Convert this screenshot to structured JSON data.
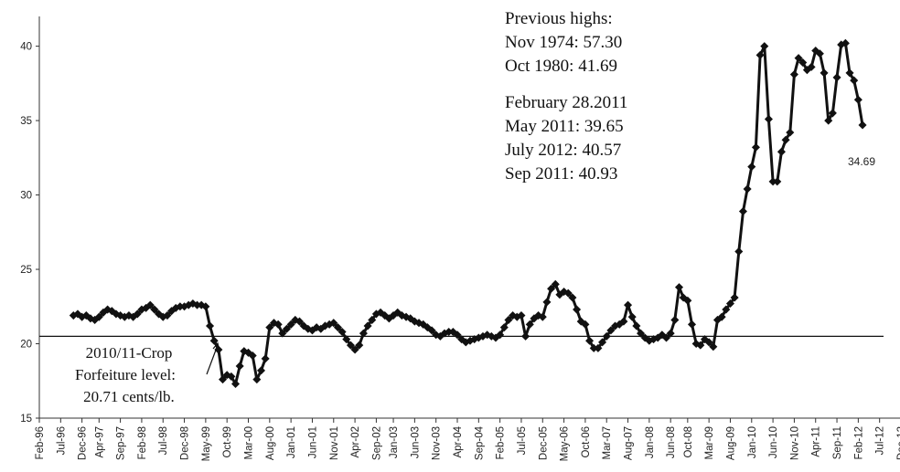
{
  "chart_data": {
    "type": "line",
    "title": "",
    "xlabel": "",
    "ylabel": "",
    "ylim": [
      15,
      42
    ],
    "yticks": [
      15,
      20,
      25,
      30,
      35,
      40
    ],
    "xlim": [
      "1996-02",
      "2012-12"
    ],
    "xtick_labels": [
      "Feb-96",
      "Jul-96",
      "Dec-96",
      "Apr-97",
      "Sep-97",
      "Feb-98",
      "Jul-98",
      "Dec-98",
      "May-99",
      "Oct-99",
      "Mar-00",
      "Aug-00",
      "Jan-01",
      "Jun-01",
      "Nov-01",
      "Apr-02",
      "Sep-02",
      "Jan-03",
      "Jun-03",
      "Nov-03",
      "Apr-04",
      "Sep-04",
      "Feb-05",
      "Jul-05",
      "Dec-05",
      "May-06",
      "Oct-06",
      "Mar-07",
      "Aug-07",
      "Jan-08",
      "Jun-08",
      "Oct-08",
      "Mar-09",
      "Aug-09",
      "Jan-10",
      "Jun-10",
      "Nov-10",
      "Apr-11",
      "Sep-11",
      "Feb-12",
      "Jul-12",
      "Dec-12"
    ],
    "reference_line": {
      "value": 20.5
    },
    "grid": false,
    "legend": "none",
    "series": [
      {
        "points": [
          [
            "1996-10",
            21.9
          ],
          [
            "1996-11",
            22.0
          ],
          [
            "1996-12",
            21.8
          ],
          [
            "1997-01",
            21.9
          ],
          [
            "1997-02",
            21.7
          ],
          [
            "1997-03",
            21.6
          ],
          [
            "1997-04",
            21.8
          ],
          [
            "1997-05",
            22.1
          ],
          [
            "1997-06",
            22.3
          ],
          [
            "1997-07",
            22.2
          ],
          [
            "1997-08",
            22.0
          ],
          [
            "1997-09",
            21.9
          ],
          [
            "1997-10",
            21.8
          ],
          [
            "1997-11",
            21.9
          ],
          [
            "1997-12",
            21.8
          ],
          [
            "1998-01",
            22.0
          ],
          [
            "1998-02",
            22.3
          ],
          [
            "1998-03",
            22.4
          ],
          [
            "1998-04",
            22.6
          ],
          [
            "1998-05",
            22.3
          ],
          [
            "1998-06",
            22.0
          ],
          [
            "1998-07",
            21.8
          ],
          [
            "1998-08",
            21.9
          ],
          [
            "1998-09",
            22.2
          ],
          [
            "1998-10",
            22.4
          ],
          [
            "1998-11",
            22.5
          ],
          [
            "1998-12",
            22.5
          ],
          [
            "1999-01",
            22.6
          ],
          [
            "1999-02",
            22.7
          ],
          [
            "1999-03",
            22.6
          ],
          [
            "1999-04",
            22.6
          ],
          [
            "1999-05",
            22.5
          ],
          [
            "1999-06",
            21.2
          ],
          [
            "1999-07",
            20.2
          ],
          [
            "1999-08",
            19.6
          ],
          [
            "1999-09",
            17.6
          ],
          [
            "1999-10",
            17.9
          ],
          [
            "1999-11",
            17.8
          ],
          [
            "1999-12",
            17.3
          ],
          [
            "2000-01",
            18.5
          ],
          [
            "2000-02",
            19.5
          ],
          [
            "2000-03",
            19.4
          ],
          [
            "2000-04",
            19.2
          ],
          [
            "2000-05",
            17.6
          ],
          [
            "2000-06",
            18.2
          ],
          [
            "2000-07",
            19.0
          ],
          [
            "2000-08",
            21.1
          ],
          [
            "2000-09",
            21.4
          ],
          [
            "2000-10",
            21.3
          ],
          [
            "2000-11",
            20.7
          ],
          [
            "2000-12",
            21.0
          ],
          [
            "2001-01",
            21.3
          ],
          [
            "2001-02",
            21.6
          ],
          [
            "2001-03",
            21.5
          ],
          [
            "2001-04",
            21.2
          ],
          [
            "2001-05",
            21.0
          ],
          [
            "2001-06",
            20.9
          ],
          [
            "2001-07",
            21.1
          ],
          [
            "2001-08",
            21.0
          ],
          [
            "2001-09",
            21.2
          ],
          [
            "2001-10",
            21.3
          ],
          [
            "2001-11",
            21.4
          ],
          [
            "2001-12",
            21.1
          ],
          [
            "2002-01",
            20.8
          ],
          [
            "2002-02",
            20.3
          ],
          [
            "2002-03",
            19.9
          ],
          [
            "2002-04",
            19.6
          ],
          [
            "2002-05",
            19.9
          ],
          [
            "2002-06",
            20.7
          ],
          [
            "2002-07",
            21.2
          ],
          [
            "2002-08",
            21.6
          ],
          [
            "2002-09",
            22.0
          ],
          [
            "2002-10",
            22.1
          ],
          [
            "2002-11",
            21.9
          ],
          [
            "2002-12",
            21.7
          ],
          [
            "2003-01",
            21.9
          ],
          [
            "2003-02",
            22.1
          ],
          [
            "2003-03",
            21.9
          ],
          [
            "2003-04",
            21.8
          ],
          [
            "2003-05",
            21.7
          ],
          [
            "2003-06",
            21.5
          ],
          [
            "2003-07",
            21.4
          ],
          [
            "2003-08",
            21.3
          ],
          [
            "2003-09",
            21.1
          ],
          [
            "2003-10",
            20.9
          ],
          [
            "2003-11",
            20.6
          ],
          [
            "2003-12",
            20.5
          ],
          [
            "2004-01",
            20.7
          ],
          [
            "2004-02",
            20.8
          ],
          [
            "2004-03",
            20.8
          ],
          [
            "2004-04",
            20.6
          ],
          [
            "2004-05",
            20.3
          ],
          [
            "2004-06",
            20.1
          ],
          [
            "2004-07",
            20.2
          ],
          [
            "2004-08",
            20.3
          ],
          [
            "2004-09",
            20.4
          ],
          [
            "2004-10",
            20.5
          ],
          [
            "2004-11",
            20.6
          ],
          [
            "2004-12",
            20.5
          ],
          [
            "2005-01",
            20.4
          ],
          [
            "2005-02",
            20.6
          ],
          [
            "2005-03",
            21.1
          ],
          [
            "2005-04",
            21.6
          ],
          [
            "2005-05",
            21.9
          ],
          [
            "2005-06",
            21.8
          ],
          [
            "2005-07",
            21.9
          ],
          [
            "2005-08",
            20.5
          ],
          [
            "2005-09",
            21.3
          ],
          [
            "2005-10",
            21.7
          ],
          [
            "2005-11",
            21.9
          ],
          [
            "2005-12",
            21.8
          ],
          [
            "2006-01",
            22.8
          ],
          [
            "2006-02",
            23.7
          ],
          [
            "2006-03",
            24.0
          ],
          [
            "2006-04",
            23.3
          ],
          [
            "2006-05",
            23.5
          ],
          [
            "2006-06",
            23.4
          ],
          [
            "2006-07",
            23.1
          ],
          [
            "2006-08",
            22.3
          ],
          [
            "2006-09",
            21.5
          ],
          [
            "2006-10",
            21.3
          ],
          [
            "2006-11",
            20.2
          ],
          [
            "2006-12",
            19.7
          ],
          [
            "2007-01",
            19.7
          ],
          [
            "2007-02",
            20.1
          ],
          [
            "2007-03",
            20.5
          ],
          [
            "2007-04",
            20.9
          ],
          [
            "2007-05",
            21.2
          ],
          [
            "2007-06",
            21.3
          ],
          [
            "2007-07",
            21.5
          ],
          [
            "2007-08",
            22.6
          ],
          [
            "2007-09",
            21.8
          ],
          [
            "2007-10",
            21.2
          ],
          [
            "2007-11",
            20.7
          ],
          [
            "2007-12",
            20.4
          ],
          [
            "2008-01",
            20.2
          ],
          [
            "2008-02",
            20.3
          ],
          [
            "2008-03",
            20.4
          ],
          [
            "2008-04",
            20.6
          ],
          [
            "2008-05",
            20.4
          ],
          [
            "2008-06",
            20.7
          ],
          [
            "2008-07",
            21.6
          ],
          [
            "2008-08",
            23.8
          ],
          [
            "2008-09",
            23.1
          ],
          [
            "2008-10",
            22.9
          ],
          [
            "2008-11",
            21.3
          ],
          [
            "2008-12",
            20.0
          ],
          [
            "2009-01",
            19.9
          ],
          [
            "2009-02",
            20.3
          ],
          [
            "2009-03",
            20.1
          ],
          [
            "2009-04",
            19.8
          ],
          [
            "2009-05",
            21.6
          ],
          [
            "2009-06",
            21.8
          ],
          [
            "2009-07",
            22.3
          ],
          [
            "2009-08",
            22.7
          ],
          [
            "2009-09",
            23.1
          ],
          [
            "2009-10",
            26.2
          ],
          [
            "2009-11",
            28.9
          ],
          [
            "2009-12",
            30.4
          ],
          [
            "2010-01",
            31.9
          ],
          [
            "2010-02",
            33.2
          ],
          [
            "2010-03",
            39.4
          ],
          [
            "2010-04",
            40.0
          ],
          [
            "2010-05",
            35.1
          ],
          [
            "2010-06",
            30.9
          ],
          [
            "2010-07",
            30.9
          ],
          [
            "2010-08",
            32.9
          ],
          [
            "2010-09",
            33.7
          ],
          [
            "2010-10",
            34.2
          ],
          [
            "2010-11",
            38.1
          ],
          [
            "2010-12",
            39.2
          ],
          [
            "2011-01",
            38.9
          ],
          [
            "2011-02",
            38.4
          ],
          [
            "2011-03",
            38.6
          ],
          [
            "2011-04",
            39.7
          ],
          [
            "2011-05",
            39.5
          ],
          [
            "2011-06",
            38.2
          ],
          [
            "2011-07",
            35.0
          ],
          [
            "2011-08",
            35.5
          ],
          [
            "2011-09",
            37.9
          ],
          [
            "2011-10",
            40.1
          ],
          [
            "2011-11",
            40.2
          ],
          [
            "2011-12",
            38.2
          ],
          [
            "2012-01",
            37.7
          ],
          [
            "2012-02",
            36.4
          ],
          [
            "2012-03",
            34.7
          ]
        ]
      }
    ],
    "annotations": {
      "previous_highs": [
        "Previous highs:",
        "Nov 1974: 57.30",
        "Oct 1980: 41.69"
      ],
      "recent": [
        "February 28.2011",
        "May 2011: 39.65",
        "July 2012: 40.57",
        "Sep 2011: 40.93"
      ],
      "forfeiture": [
        "2010/11-Crop",
        "Forfeiture level:",
        "20.71 cents/lb."
      ],
      "last_value": "34.69"
    }
  },
  "colors": {
    "line": "#111111",
    "axis": "#333333",
    "reference_line": "#111111"
  }
}
